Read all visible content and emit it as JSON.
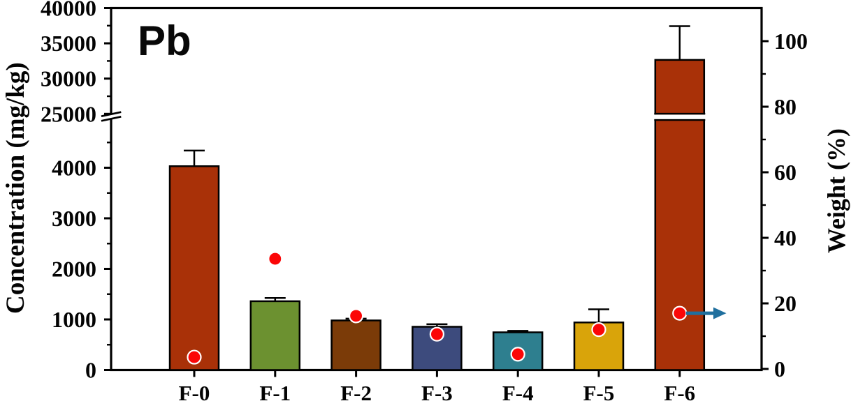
{
  "figure": {
    "annotation": "Pb",
    "left_axis_title": "Concentration (mg/kg)",
    "right_axis_title": "Weight (%)"
  },
  "chart_data": {
    "type": "bar",
    "title": "Pb",
    "xlabel": "",
    "ylabel": "Concentration (mg/kg)",
    "y2label": "Weight (%)",
    "categories": [
      "F-0",
      "F-1",
      "F-2",
      "F-3",
      "F-4",
      "F-5",
      "F-6"
    ],
    "left_axis": {
      "type": "broken",
      "lower_segment": {
        "range": [
          0,
          5000
        ],
        "major_ticks": [
          0,
          1000,
          2000,
          3000,
          4000
        ],
        "minor_ticks": [
          500,
          1500,
          2500,
          3500,
          4500
        ]
      },
      "upper_segment": {
        "range": [
          25000,
          40000
        ],
        "major_ticks": [
          25000,
          30000,
          35000,
          40000
        ],
        "minor_ticks": [
          27500,
          32500,
          37500
        ]
      }
    },
    "right_axis": {
      "range": [
        0,
        110
      ],
      "major_ticks": [
        0,
        20,
        40,
        60,
        80,
        100
      ],
      "minor_ticks": [
        10,
        30,
        50,
        70,
        90
      ]
    },
    "series": [
      {
        "name": "Concentration (mg/kg)",
        "plot": "bar",
        "axis": "left",
        "values": [
          4030,
          1360,
          980,
          855,
          745,
          940,
          32650
        ],
        "error_plus": [
          310,
          65,
          35,
          50,
          30,
          260,
          4780
        ],
        "bar_colors": [
          "#A93108",
          "#6C9130",
          "#7B3B08",
          "#3D4B7D",
          "#2E7F8F",
          "#D9A40A",
          "#A93108"
        ],
        "bar_outline": "#000000"
      },
      {
        "name": "Weight (%)",
        "plot": "scatter",
        "axis": "right",
        "values": [
          3.6,
          33.6,
          16.2,
          10.6,
          4.5,
          12.0,
          17.0
        ],
        "marker": {
          "shape": "circle",
          "fill": "#FB0607",
          "outline": "#FFFFFF"
        }
      }
    ],
    "annotations": [
      {
        "type": "text",
        "text": "Pb",
        "position": "top-left-inside"
      },
      {
        "type": "arrow",
        "at_category": "F-6",
        "series": "Weight (%)",
        "direction": "right",
        "color": "#1F6F9E",
        "meaning": "weight series read on right axis"
      }
    ],
    "grid": false,
    "legend": null
  }
}
